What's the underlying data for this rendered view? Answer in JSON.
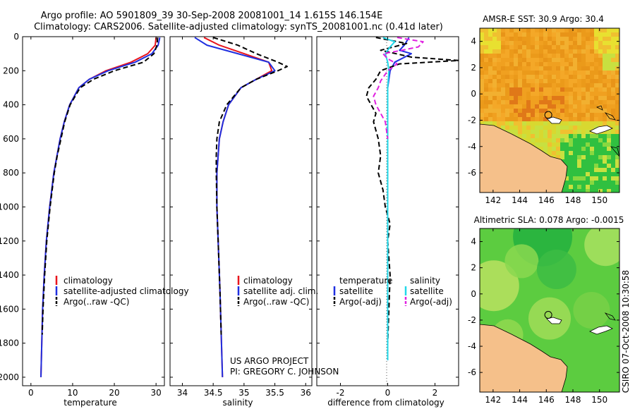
{
  "title": {
    "line1": "Argo profile: AO 5901809_39 30-Sep-2008 20081001_14 1.615S 146.154E",
    "line2": "Climatology: CARS2006. Satellite-adjusted climatology: synTS_20081001.nc (0.41d later)"
  },
  "credit": "CSIRO 07-Oct-2008 10:30:58",
  "project": {
    "line1": "US ARGO PROJECT",
    "line2": "PI: GREGORY C. JOHNSON"
  },
  "colors": {
    "climatology": "#e8141c",
    "satellite": "#1f2fe0",
    "argo": "#000000",
    "salinity_sat": "#22d8e8",
    "salinity_argo": "#e020e0",
    "land": "#f5c08a",
    "warm": "#f0a020",
    "yellow": "#e8e030",
    "green": "#30c040"
  },
  "chart_data": [
    {
      "type": "line",
      "name": "temperature-profile",
      "xlabel": "temperature",
      "xlim": [
        -2,
        32
      ],
      "ylim": [
        0,
        2050
      ],
      "xticks": [
        "0",
        "10",
        "20",
        "30"
      ],
      "yticks": [
        "0",
        "200",
        "400",
        "600",
        "800",
        "1000",
        "1200",
        "1400",
        "1600",
        "1800",
        "2000"
      ],
      "legend": [
        "climatology",
        "satellite-adjusted climatology",
        "Argo(..raw -QC)"
      ],
      "series": [
        {
          "name": "climatology",
          "depth": [
            5,
            50,
            100,
            150,
            200,
            250,
            300,
            400,
            500,
            600,
            800,
            1000,
            1200,
            1400,
            1600,
            1800,
            2000
          ],
          "values": [
            30.0,
            29.8,
            28.0,
            24.0,
            18.0,
            14.0,
            11.5,
            9.3,
            8.0,
            7.0,
            5.5,
            4.5,
            3.7,
            3.2,
            2.8,
            2.6,
            2.4
          ]
        },
        {
          "name": "satellite",
          "depth": [
            5,
            50,
            100,
            150,
            200,
            250,
            300,
            400,
            500,
            600,
            800,
            1000,
            1200,
            1400,
            1600,
            1800,
            2000
          ],
          "values": [
            30.9,
            30.5,
            29.0,
            25.0,
            18.5,
            14.0,
            11.5,
            9.3,
            8.0,
            7.0,
            5.5,
            4.5,
            3.7,
            3.2,
            2.8,
            2.6,
            2.4
          ]
        },
        {
          "name": "argo",
          "depth": [
            5,
            50,
            100,
            150,
            200,
            250,
            300,
            400,
            500,
            600,
            700,
            800,
            1000,
            1200,
            1400,
            1600,
            1750
          ],
          "values": [
            30.4,
            30.2,
            29.5,
            27.0,
            20.0,
            15.0,
            11.8,
            9.4,
            8.1,
            7.2,
            6.3,
            5.6,
            4.6,
            3.8,
            3.3,
            2.9,
            2.7
          ]
        }
      ]
    },
    {
      "type": "line",
      "name": "salinity-profile",
      "xlabel": "salinity",
      "xlim": [
        33.8,
        36.1
      ],
      "ylim": [
        0,
        2050
      ],
      "xticks": [
        "34",
        "34.5",
        "35",
        "35.5",
        "36"
      ],
      "legend": [
        "climatology",
        "satellite adj. clim.",
        "Argo(..raw -QC)"
      ],
      "series": [
        {
          "name": "climatology",
          "depth": [
            5,
            50,
            100,
            150,
            200,
            250,
            300,
            400,
            500,
            600,
            800,
            1000,
            1200,
            1500,
            2000
          ],
          "values": [
            34.35,
            34.6,
            35.0,
            35.4,
            35.45,
            35.2,
            34.95,
            34.75,
            34.66,
            34.6,
            34.56,
            34.56,
            34.58,
            34.61,
            34.65
          ]
        },
        {
          "name": "satellite",
          "depth": [
            5,
            50,
            100,
            150,
            200,
            250,
            300,
            400,
            500,
            600,
            800,
            1000,
            1200,
            1500,
            2000
          ],
          "values": [
            34.2,
            34.4,
            34.9,
            35.4,
            35.5,
            35.2,
            34.95,
            34.75,
            34.66,
            34.6,
            34.56,
            34.56,
            34.58,
            34.61,
            34.65
          ]
        },
        {
          "name": "argo",
          "depth": [
            5,
            50,
            100,
            150,
            175,
            200,
            250,
            300,
            400,
            500,
            600,
            700,
            800,
            1000,
            1200,
            1500,
            1750
          ],
          "values": [
            34.5,
            34.9,
            35.2,
            35.55,
            35.7,
            35.55,
            35.2,
            34.95,
            34.72,
            34.6,
            34.56,
            34.55,
            34.55,
            34.56,
            34.58,
            34.61,
            34.63
          ]
        }
      ]
    },
    {
      "type": "line",
      "name": "difference-profile",
      "xlabel": "difference from climatology",
      "xlim": [
        -3,
        3
      ],
      "ylim": [
        0,
        2050
      ],
      "xticks": [
        "-2",
        "0",
        "2"
      ],
      "legend_headers": [
        "temperature",
        "salinity"
      ],
      "legend": [
        "satellite",
        "Argo(-adj)",
        "satellite",
        "Argo(-adj)"
      ],
      "series": [
        {
          "name": "temperature-satellite",
          "depth": [
            5,
            50,
            80,
            100,
            150,
            200,
            300,
            500,
            1000,
            1500,
            1900
          ],
          "values": [
            0.9,
            0.7,
            0.5,
            1.0,
            0.3,
            0.1,
            0.0,
            0.0,
            0.0,
            0.0,
            0.0
          ]
        },
        {
          "name": "temperature-argo",
          "depth": [
            5,
            40,
            80,
            120,
            140,
            160,
            200,
            250,
            300,
            350,
            400,
            450,
            500,
            600,
            700,
            800,
            900,
            1000,
            1100,
            1200,
            1400,
            1600,
            1800
          ],
          "values": [
            -0.5,
            0.8,
            -0.3,
            1.0,
            3.0,
            0.5,
            -0.3,
            -0.5,
            -0.8,
            -0.9,
            -0.7,
            -0.5,
            -0.6,
            -0.4,
            -0.3,
            -0.4,
            -0.2,
            -0.1,
            0.1,
            0.0,
            0.1,
            0.05,
            0.0
          ]
        },
        {
          "name": "salinity-satellite",
          "depth": [
            5,
            30,
            60,
            100,
            150,
            200,
            300,
            500,
            1000,
            1500,
            1900
          ],
          "values": [
            -0.2,
            0.3,
            0.1,
            -0.1,
            0.0,
            0.05,
            0.0,
            0.0,
            0.0,
            0.0,
            0.0
          ]
        },
        {
          "name": "salinity-argo",
          "depth": [
            5,
            30,
            60,
            80,
            100,
            130,
            160,
            200,
            260,
            300,
            350,
            400,
            450,
            500,
            600
          ],
          "values": [
            0.4,
            1.5,
            1.3,
            0.6,
            -0.2,
            0.0,
            0.4,
            0.0,
            -0.3,
            -0.4,
            -0.6,
            -0.5,
            -0.3,
            -0.1,
            0.0
          ]
        }
      ]
    },
    {
      "type": "heatmap",
      "name": "sst-map",
      "title": "AMSR-E SST: 30.9 Argo: 30.4",
      "xlim": [
        141,
        151.5
      ],
      "ylim": [
        -7.5,
        5
      ],
      "xticks": [
        "142",
        "144",
        "146",
        "148",
        "150"
      ],
      "yticks": [
        "4",
        "2",
        "0",
        "-2",
        "-4",
        "-6"
      ],
      "marker": {
        "lon": 146.15,
        "lat": -1.6
      }
    },
    {
      "type": "heatmap",
      "name": "sla-map",
      "title": "Altimetric SLA: 0.078 Argo: -0.0015",
      "xlim": [
        141,
        151.5
      ],
      "ylim": [
        -7.5,
        5
      ],
      "xticks": [
        "142",
        "144",
        "146",
        "148",
        "150"
      ],
      "yticks": [
        "4",
        "2",
        "0",
        "-2",
        "-4",
        "-6"
      ],
      "marker": {
        "lon": 146.15,
        "lat": -1.6
      }
    }
  ]
}
